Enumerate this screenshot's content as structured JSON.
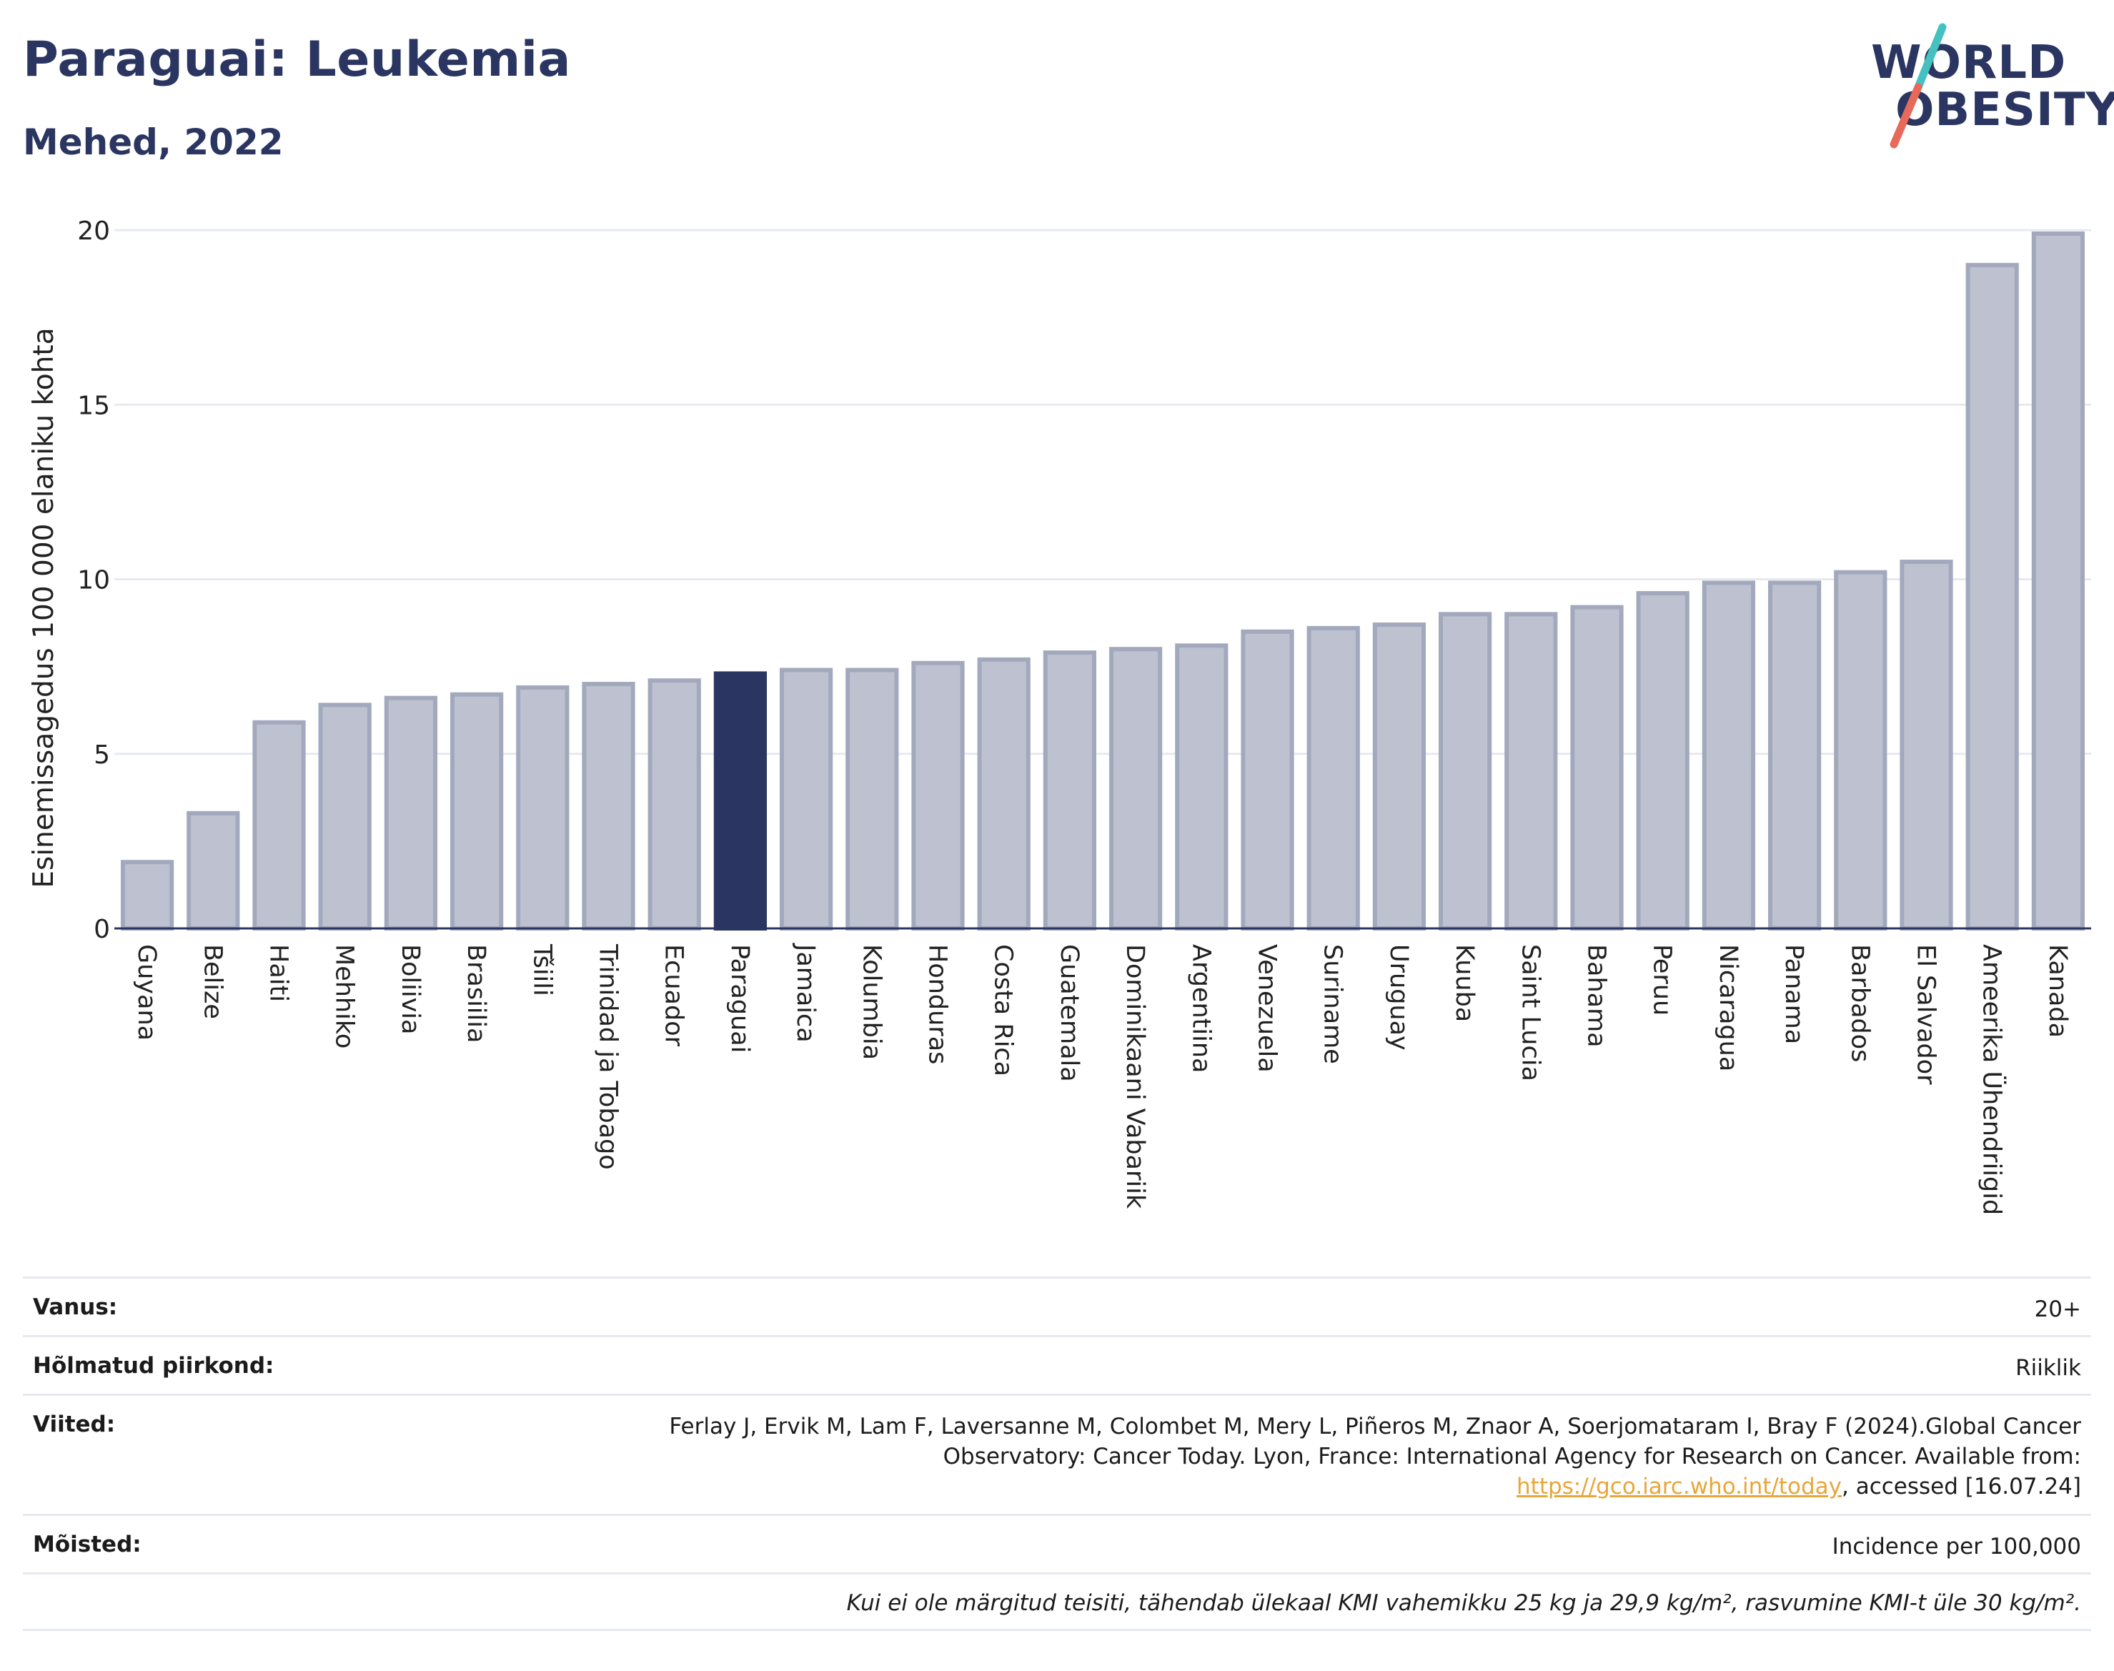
{
  "header": {
    "title": "Paraguai: Leukemia",
    "subtitle": "Mehed, 2022"
  },
  "logo": {
    "line1": "WORLD",
    "line2": "OBESITY",
    "slash_colors": [
      "#45c1c0",
      "#e8685a"
    ]
  },
  "colors": {
    "bar_default": "#bec2d0",
    "bar_default_stroke": "#a3a9bd",
    "bar_highlight": "#2b3561",
    "grid": "#e6e9f0",
    "axis": "#2b3561"
  },
  "chart_data": {
    "type": "bar",
    "ylabel": "Esinemissagedus 100 000 elaniku kohta",
    "ylim": [
      0,
      20
    ],
    "yticks": [
      0,
      5,
      10,
      15,
      20
    ],
    "grid": true,
    "highlight": "Paraguai",
    "categories": [
      "Guyana",
      "Belize",
      "Haiti",
      "Mehhiko",
      "Boliivia",
      "Brasiilia",
      "Tšiili",
      "Trinidad ja Tobago",
      "Ecuador",
      "Paraguai",
      "Jamaica",
      "Kolumbia",
      "Honduras",
      "Costa Rica",
      "Guatemala",
      "Dominikaani Vabariik",
      "Argentiina",
      "Venezuela",
      "Suriname",
      "Uruguay",
      "Kuuba",
      "Saint Lucia",
      "Bahama",
      "Peruu",
      "Nicaragua",
      "Panama",
      "Barbados",
      "El Salvador",
      "Ameerika Ühendriigid",
      "Kanada"
    ],
    "values": [
      1.9,
      3.3,
      5.9,
      6.4,
      6.6,
      6.7,
      6.9,
      7.0,
      7.1,
      7.3,
      7.4,
      7.4,
      7.6,
      7.7,
      7.9,
      8.0,
      8.1,
      8.5,
      8.6,
      8.7,
      9.0,
      9.0,
      9.2,
      9.6,
      9.9,
      9.9,
      10.2,
      10.5,
      19.0,
      19.9
    ]
  },
  "info": {
    "age_label": "Vanus:",
    "age_value": "20+",
    "area_label": "Hõlmatud piirkond:",
    "area_value": "Riiklik",
    "refs_label": "Viited:",
    "refs_text": "Ferlay J, Ervik M, Lam F, Laversanne M, Colombet M, Mery L, Piñeros M, Znaor A, Soerjomataram I, Bray F (2024).Global Cancer Observatory: Cancer Today. Lyon, France: International Agency for Research on Cancer. Available from: ",
    "refs_link": "https://gco.iarc.who.int/today",
    "refs_after": ", accessed [16.07.24]",
    "defs_label": "Mõisted:",
    "defs_value": "Incidence per 100,000",
    "footnote": "Kui ei ole märgitud teisiti, tähendab ülekaal KMI vahemikku 25 kg ja 29,9 kg/m², rasvumine KMI-t üle 30 kg/m²."
  }
}
